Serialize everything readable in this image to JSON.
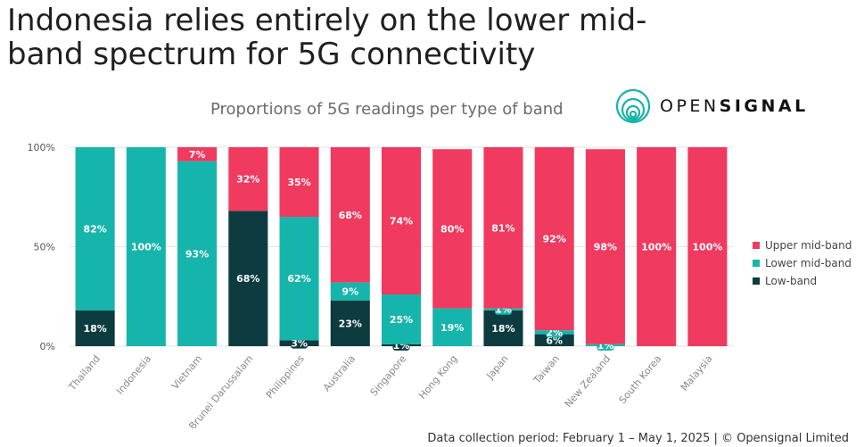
{
  "headline": "Indonesia relies entirely on the lower mid-band spectrum for 5G connectivity",
  "subtitle": "Proportions of 5G readings per type of band",
  "logo": {
    "text_light": "OPEN",
    "text_bold": "SIGNAL",
    "icon": "opensignal-logo-icon"
  },
  "footer": "Data collection period: February 1 – May 1, 2025 | © Opensignal Limited",
  "colors": {
    "upper": "#f03a5f",
    "lower": "#16b5ab",
    "low": "#0c3b40",
    "grid": "#e3e3e3"
  },
  "chart_data": {
    "type": "bar",
    "stacked": true,
    "title": "Proportions of 5G readings per type of band",
    "categories": [
      "Thailand",
      "Indonesia",
      "Vietnam",
      "Brunei Darussalam",
      "Philippines",
      "Australia",
      "Singapore",
      "Hong Kong",
      "Japan",
      "Taiwan",
      "New Zealand",
      "South Korea",
      "Malaysia"
    ],
    "series": [
      {
        "name": "Low-band",
        "color": "#0c3b40",
        "values": [
          18,
          0,
          0,
          68,
          3,
          23,
          1,
          0,
          18,
          6,
          0,
          0,
          0
        ],
        "labels": [
          "18%",
          "",
          "",
          "68%",
          "3%",
          "23%",
          "1%",
          "",
          "18%",
          "6%",
          "",
          "",
          ""
        ]
      },
      {
        "name": "Lower mid-band",
        "color": "#16b5ab",
        "values": [
          82,
          100,
          93,
          0,
          62,
          9,
          25,
          19,
          1,
          2,
          1,
          0,
          0
        ],
        "labels": [
          "82%",
          "100%",
          "93%",
          "",
          "62%",
          "9%",
          "25%",
          "19%",
          "1%",
          "2%",
          "1%",
          "",
          ""
        ]
      },
      {
        "name": "Upper mid-band",
        "color": "#f03a5f",
        "values": [
          0,
          0,
          7,
          32,
          35,
          68,
          74,
          80,
          81,
          92,
          98,
          100,
          100
        ],
        "labels": [
          "",
          "",
          "7%",
          "32%",
          "35%",
          "68%",
          "74%",
          "80%",
          "81%",
          "92%",
          "98%",
          "100%",
          "100%"
        ]
      }
    ],
    "y_ticks": [
      "0%",
      "50%",
      "100%"
    ],
    "ylim": [
      0,
      100
    ],
    "grid": true,
    "legend": {
      "position": "right",
      "order": [
        "Upper mid-band",
        "Lower mid-band",
        "Low-band"
      ]
    }
  }
}
